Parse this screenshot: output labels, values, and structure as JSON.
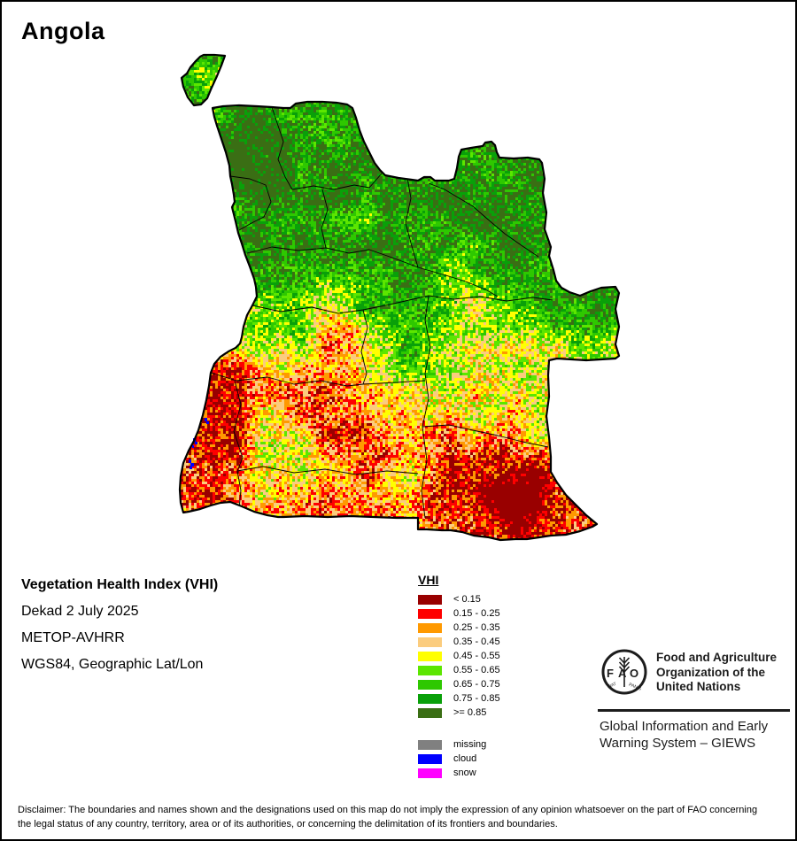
{
  "title": "Angola",
  "info": {
    "product": "Vegetation Health Index (VHI)",
    "dekad": "Dekad 2 July 2025",
    "sensor": "METOP-AVHRR",
    "projection": "WGS84, Geographic Lat/Lon"
  },
  "legend": {
    "header": "VHI",
    "classes": [
      {
        "label": "< 0.15",
        "color": "#990000"
      },
      {
        "label": "0.15 - 0.25",
        "color": "#fe0000"
      },
      {
        "label": "0.25 - 0.35",
        "color": "#ff9900"
      },
      {
        "label": "0.35 - 0.45",
        "color": "#fbcc7e"
      },
      {
        "label": "0.45 - 0.55",
        "color": "#ffff00"
      },
      {
        "label": "0.55 - 0.65",
        "color": "#5ce600"
      },
      {
        "label": "0.65 - 0.75",
        "color": "#2ec800"
      },
      {
        "label": "0.75 - 0.85",
        "color": "#09a009"
      },
      {
        "label": ">= 0.85",
        "color": "#3a6e14"
      }
    ],
    "extra": [
      {
        "label": "missing",
        "color": "#808080"
      },
      {
        "label": "cloud",
        "color": "#0000ff"
      },
      {
        "label": "snow",
        "color": "#ff00ff"
      }
    ]
  },
  "fao": {
    "org_line1": "Food and Agriculture",
    "org_line2": "Organization of the",
    "org_line3": "United Nations",
    "logo_acronym": "FAO",
    "logo_motto": "FIAT PANIS",
    "giews_line1": "Global Information and Early",
    "giews_line2": "Warning System – GIEWS"
  },
  "disclaimer": "Disclaimer: The boundaries and names shown and the designations used on this map do not imply the expression of any opinion whatsoever on the part of FAO concerning the legal status of any country, territory, area or of its authorities, or concerning the delimitation of its frontiers and boundaries."
}
